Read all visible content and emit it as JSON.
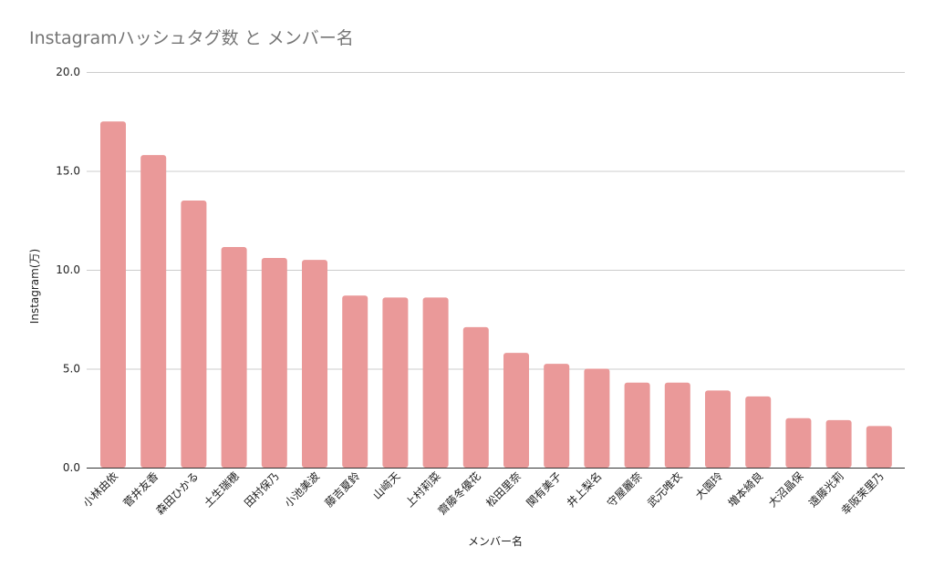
{
  "chart_data": {
    "type": "bar",
    "title": "Instagramハッシュタグ数 と メンバー名",
    "xlabel": "メンバー名",
    "ylabel": "Instagram(万)",
    "ylim": [
      0,
      20
    ],
    "yticks": [
      "0.0",
      "5.0",
      "10.0",
      "15.0",
      "20.0"
    ],
    "grid": true,
    "legend": "none",
    "bar_color": "#ea9999",
    "categories": [
      "小林由依",
      "菅井友香",
      "森田ひかる",
      "土生瑞穂",
      "田村保乃",
      "小池美波",
      "藤吉夏鈴",
      "山﨑天",
      "上村莉菜",
      "齋藤冬優花",
      "松田里奈",
      "関有美子",
      "井上梨名",
      "守屋麗奈",
      "武元唯衣",
      "大園玲",
      "増本綺良",
      "大沼晶保",
      "遠藤光莉",
      "幸阪茉里乃"
    ],
    "values": [
      17.5,
      15.8,
      13.5,
      11.15,
      10.6,
      10.5,
      8.7,
      8.6,
      8.6,
      7.1,
      5.8,
      5.25,
      5.0,
      4.3,
      4.3,
      3.9,
      3.6,
      2.5,
      2.4,
      2.1
    ]
  }
}
